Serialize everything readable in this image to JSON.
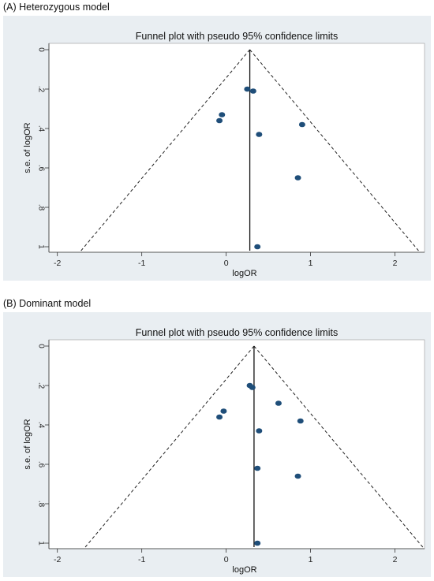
{
  "chart_data": [
    {
      "panel_label": "(A) Heterozygous model",
      "type": "scatter",
      "title": "Funnel plot with pseudo 95% confidence limits",
      "xlabel": "logOR",
      "ylabel": "s.e. of logOR",
      "xlim": [
        -2.1,
        2.35
      ],
      "ylim": [
        1.02,
        0
      ],
      "y_axis_inverted": true,
      "xticks": [
        "-2",
        "-1",
        "0",
        "1",
        "2"
      ],
      "yticks": [
        "0",
        ".2",
        ".4",
        ".6",
        ".8",
        "1"
      ],
      "pooled_logOR": 0.28,
      "points": [
        {
          "x": 0.25,
          "y": 0.2
        },
        {
          "x": 0.32,
          "y": 0.21
        },
        {
          "x": -0.05,
          "y": 0.33
        },
        {
          "x": -0.08,
          "y": 0.36
        },
        {
          "x": 0.39,
          "y": 0.43
        },
        {
          "x": 0.9,
          "y": 0.38
        },
        {
          "x": 0.85,
          "y": 0.65
        },
        {
          "x": 0.37,
          "y": 1.0
        }
      ],
      "grid": false,
      "colors": {
        "points": "#1f4e79",
        "background": "#e9eef2",
        "plot_area": "#ffffff"
      }
    },
    {
      "panel_label": "(B) Dominant model",
      "type": "scatter",
      "title": "Funnel plot with pseudo 95% confidence limits",
      "xlabel": "logOR",
      "ylabel": "s.e. of logOR",
      "xlim": [
        -2.1,
        2.35
      ],
      "ylim": [
        1.02,
        0
      ],
      "y_axis_inverted": true,
      "xticks": [
        "-2",
        "-1",
        "0",
        "1",
        "2"
      ],
      "yticks": [
        "0",
        ".2",
        ".4",
        ".6",
        ".8",
        "1"
      ],
      "pooled_logOR": 0.33,
      "points": [
        {
          "x": 0.28,
          "y": 0.2
        },
        {
          "x": 0.31,
          "y": 0.21
        },
        {
          "x": 0.62,
          "y": 0.29
        },
        {
          "x": -0.03,
          "y": 0.33
        },
        {
          "x": -0.08,
          "y": 0.36
        },
        {
          "x": 0.39,
          "y": 0.43
        },
        {
          "x": 0.88,
          "y": 0.38
        },
        {
          "x": 0.37,
          "y": 0.62
        },
        {
          "x": 0.85,
          "y": 0.66
        },
        {
          "x": 0.37,
          "y": 1.0
        }
      ],
      "grid": false,
      "colors": {
        "points": "#1f4e79",
        "background": "#e9eef2",
        "plot_area": "#ffffff"
      }
    }
  ]
}
